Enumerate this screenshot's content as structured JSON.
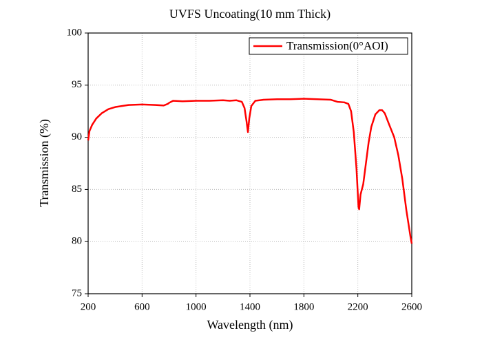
{
  "chart_data": {
    "type": "line",
    "title": "UVFS Uncoating(10 mm Thick)",
    "x_label": "Wavelength (nm)",
    "y_label": "Transmission (%)",
    "x": [
      200,
      210,
      230,
      260,
      300,
      350,
      400,
      500,
      600,
      700,
      760,
      790,
      800,
      830,
      900,
      1000,
      1100,
      1200,
      1250,
      1300,
      1340,
      1360,
      1375,
      1385,
      1395,
      1410,
      1440,
      1500,
      1600,
      1700,
      1800,
      1900,
      2000,
      2050,
      2100,
      2130,
      2150,
      2170,
      2190,
      2205,
      2210,
      2220,
      2240,
      2260,
      2280,
      2300,
      2330,
      2360,
      2380,
      2400,
      2430,
      2470,
      2500,
      2530,
      2560,
      2590,
      2600
    ],
    "series": [
      {
        "name": "Transmission(0°AOI)",
        "color": "#ff0000",
        "values": [
          89.7,
          90.6,
          91.2,
          91.8,
          92.3,
          92.7,
          92.9,
          93.1,
          93.15,
          93.1,
          93.05,
          93.2,
          93.3,
          93.5,
          93.45,
          93.5,
          93.5,
          93.55,
          93.5,
          93.55,
          93.4,
          92.8,
          91.5,
          90.5,
          91.8,
          93.0,
          93.5,
          93.6,
          93.65,
          93.65,
          93.7,
          93.65,
          93.6,
          93.4,
          93.35,
          93.2,
          92.5,
          90.5,
          87,
          83.3,
          83.1,
          84.5,
          85.5,
          87.5,
          89.5,
          91,
          92.2,
          92.6,
          92.6,
          92.3,
          91.3,
          90,
          88.3,
          86,
          83,
          80.5,
          79.8
        ]
      }
    ],
    "xlim": [
      200,
      2600
    ],
    "xticks": [
      200,
      600,
      1000,
      1400,
      1800,
      2200,
      2600
    ],
    "ylim": [
      75,
      100
    ],
    "yticks": [
      75,
      80,
      85,
      90,
      95,
      100
    ],
    "grid": true,
    "legend": "upper right"
  }
}
